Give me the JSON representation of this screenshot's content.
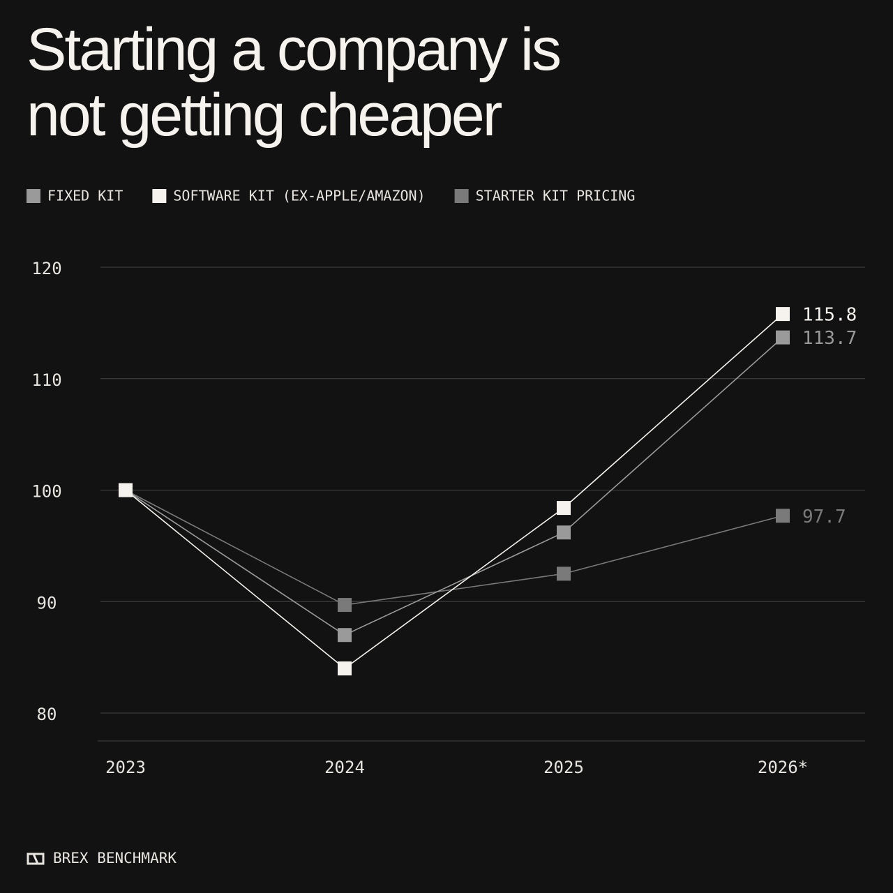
{
  "chart_data": {
    "type": "line",
    "title": "Starting a company is not getting cheaper",
    "categories": [
      "2023",
      "2024",
      "2025",
      "2026*"
    ],
    "series": [
      {
        "name": "FIXED KIT",
        "color": "#9a9a9a",
        "values": [
          100,
          87.0,
          96.2,
          113.7
        ]
      },
      {
        "name": "SOFTWARE KIT (EX-APPLE/AMAZON)",
        "color": "#f6f3ee",
        "values": [
          100,
          84.0,
          98.4,
          115.8
        ]
      },
      {
        "name": "STARTER KIT PRICING",
        "color": "#7a7a7a",
        "values": [
          100,
          89.7,
          92.5,
          97.7
        ]
      }
    ],
    "ylim": [
      77.5,
      120
    ],
    "yticks": [
      80,
      90,
      100,
      110,
      120
    ],
    "grid": true,
    "legend": "top-left",
    "footer": "BREX BENCHMARK"
  }
}
